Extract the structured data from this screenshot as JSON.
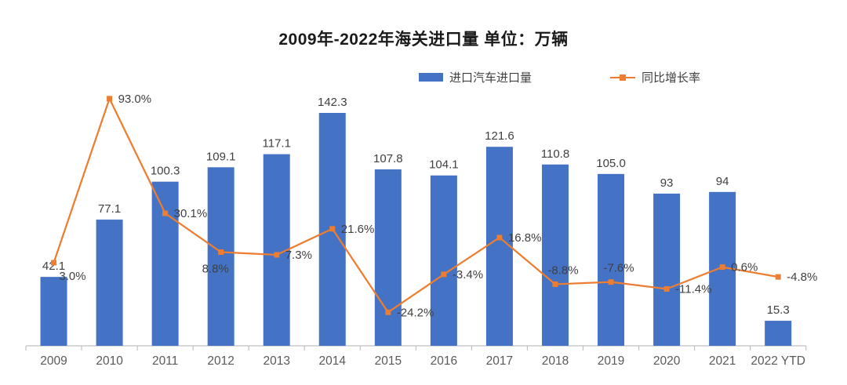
{
  "title": "2009年-2022年海关进口量  单位：万辆",
  "legend": [
    {
      "label": "进口汽车进口量",
      "type": "bar",
      "color": "#4472C4"
    },
    {
      "label": "同比增长率",
      "type": "line",
      "color": "#ED7D31"
    }
  ],
  "chart_data": {
    "type": "bar+line",
    "title": "2009年-2022年海关进口量  单位：万辆",
    "unit": "万辆",
    "categories": [
      "2009",
      "2010",
      "2011",
      "2012",
      "2013",
      "2014",
      "2015",
      "2016",
      "2017",
      "2018",
      "2019",
      "2020",
      "2021",
      "2022 YTD"
    ],
    "series": [
      {
        "name": "进口汽车进口量",
        "type": "bar",
        "color": "#4472C4",
        "values": [
          42.1,
          77.1,
          100.3,
          109.1,
          117.1,
          142.3,
          107.8,
          104.1,
          121.6,
          110.8,
          105.0,
          93,
          94,
          15.3
        ],
        "labels": [
          "42.1",
          "77.1",
          "100.3",
          "109.1",
          "117.1",
          "142.3",
          "107.8",
          "104.1",
          "121.6",
          "110.8",
          "105.0",
          "93",
          "94",
          "15.3"
        ]
      },
      {
        "name": "同比增长率",
        "type": "line",
        "color": "#ED7D31",
        "values": [
          3.0,
          93.0,
          30.1,
          8.8,
          7.3,
          21.6,
          -24.2,
          -3.4,
          16.8,
          -8.8,
          -7.6,
          -11.4,
          0.6,
          -4.8
        ],
        "labels": [
          "3.0%",
          "93.0%",
          "30.1%",
          "8.8%",
          "7.3%",
          "21.6%",
          "-24.2%",
          "-3.4%",
          "16.8%",
          "-8.8%",
          "-7.6%",
          "-11.4%",
          "0.6%",
          "-4.8%"
        ],
        "label_placements": [
          "below-right",
          "right",
          "right",
          "below-left",
          "right",
          "right",
          "right",
          "right",
          "right",
          "above",
          "above",
          "right",
          "right",
          "right"
        ]
      }
    ],
    "axes": {
      "x_axis_visible": true,
      "y_axis_visible": false,
      "gridlines": false,
      "bar_axis_range": [
        0,
        150
      ],
      "line_axis_range": [
        -40,
        100
      ]
    },
    "legend_position": "top-center",
    "colors": {
      "axis": "#BFBFBF",
      "label_text": "#404040",
      "axis_text": "#595959"
    }
  }
}
